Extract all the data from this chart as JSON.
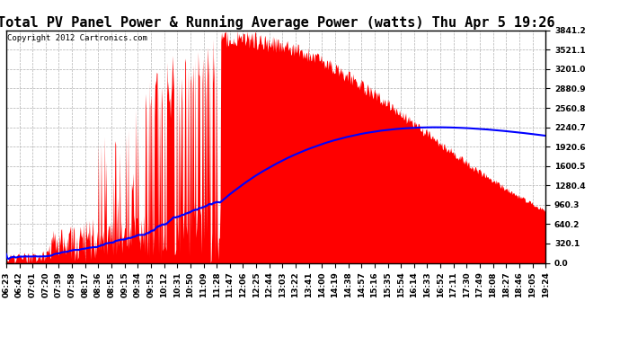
{
  "title": "Total PV Panel Power & Running Average Power (watts) Thu Apr 5 19:26",
  "copyright": "Copyright 2012 Cartronics.com",
  "yticks": [
    0.0,
    320.1,
    640.2,
    960.3,
    1280.4,
    1600.5,
    1920.6,
    2240.7,
    2560.8,
    2880.9,
    3201.0,
    3521.1,
    3841.2
  ],
  "ymax": 3841.2,
  "ymin": 0.0,
  "bar_color": "#FF0000",
  "line_color": "#0000FF",
  "background_color": "#FFFFFF",
  "grid_color": "#B0B0B0",
  "title_fontsize": 11,
  "copyright_fontsize": 6.5,
  "tick_fontsize": 6.5,
  "xtick_labels": [
    "06:23",
    "06:42",
    "07:01",
    "07:20",
    "07:39",
    "07:58",
    "08:17",
    "08:36",
    "08:55",
    "09:15",
    "09:34",
    "09:53",
    "10:12",
    "10:31",
    "10:50",
    "11:09",
    "11:28",
    "11:47",
    "12:06",
    "12:25",
    "12:44",
    "13:03",
    "13:22",
    "13:41",
    "14:00",
    "14:19",
    "14:38",
    "14:57",
    "15:16",
    "15:35",
    "15:54",
    "16:14",
    "16:33",
    "16:52",
    "17:11",
    "17:30",
    "17:49",
    "18:08",
    "18:27",
    "18:46",
    "19:05",
    "19:24"
  ]
}
